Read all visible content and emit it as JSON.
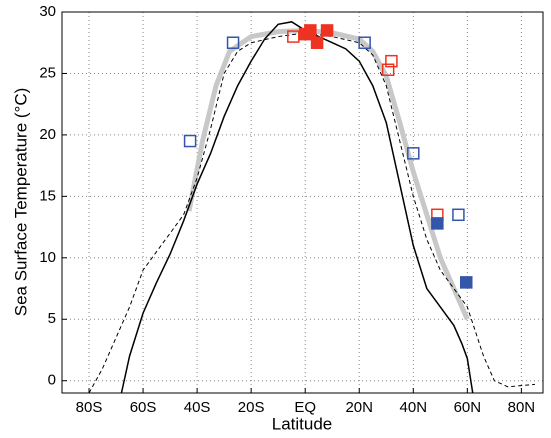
{
  "chart_data": {
    "type": "line",
    "x_label": "Latitude",
    "y_label": "Sea Surface Temperature (°C)",
    "xlim": [
      -90,
      88
    ],
    "ylim": [
      -1,
      30
    ],
    "xticks": [
      {
        "value": -80,
        "label": "80S"
      },
      {
        "value": -60,
        "label": "60S"
      },
      {
        "value": -40,
        "label": "40S"
      },
      {
        "value": -20,
        "label": "20S"
      },
      {
        "value": 0,
        "label": "EQ"
      },
      {
        "value": 20,
        "label": "20N"
      },
      {
        "value": 40,
        "label": "40N"
      },
      {
        "value": 60,
        "label": "60N"
      },
      {
        "value": 80,
        "label": "80N"
      }
    ],
    "yticks": [
      0,
      5,
      10,
      15,
      20,
      25,
      30
    ],
    "grid": true,
    "series": [
      {
        "color": "#c8c8c8",
        "line": "solid",
        "width": 5,
        "marker": "none",
        "x": [
          -43,
          -38,
          -33,
          -28,
          -20,
          -10,
          0,
          10,
          20,
          25,
          30,
          35,
          40,
          45,
          50,
          55,
          60
        ],
        "values": [
          13.8,
          19.5,
          24,
          26.8,
          28,
          28.4,
          28.5,
          28.3,
          27.8,
          26.8,
          24.8,
          21,
          17,
          13.5,
          10,
          7.5,
          5
        ]
      },
      {
        "color": "#000000",
        "line": "solid",
        "width": 1.5,
        "marker": "none",
        "x": [
          -68,
          -65,
          -60,
          -55,
          -50,
          -45,
          -40,
          -35,
          -30,
          -25,
          -20,
          -15,
          -10,
          -5,
          0,
          5,
          10,
          15,
          20,
          25,
          30,
          35,
          40,
          45,
          50,
          55,
          58,
          60,
          62
        ],
        "values": [
          -1,
          2,
          5.5,
          8,
          10.3,
          13,
          16,
          18.5,
          21.5,
          24,
          26,
          27.8,
          29,
          29.2,
          28.5,
          28,
          27.5,
          27,
          26,
          24,
          21,
          16,
          11,
          7.5,
          6,
          4.5,
          3,
          1.8,
          -1
        ]
      },
      {
        "color": "#000000",
        "line": "dashed",
        "width": 1,
        "marker": "none",
        "x": [
          -80,
          -75,
          -70,
          -65,
          -60,
          -55,
          -50,
          -45,
          -40,
          -35,
          -30,
          -25,
          -20,
          -10,
          0,
          10,
          20,
          25,
          30,
          35,
          40,
          45,
          50,
          55,
          60,
          63,
          66,
          70,
          75,
          85
        ],
        "values": [
          -1,
          1,
          3.5,
          6,
          9,
          10.5,
          12,
          13.5,
          16.5,
          20.5,
          25,
          26.8,
          27.5,
          28,
          28.3,
          28,
          27.5,
          26.5,
          24,
          19.5,
          15,
          11.5,
          9,
          7.5,
          6,
          4,
          2,
          0,
          -0.5,
          -0.3
        ]
      },
      {
        "color": "#3355aa",
        "line": "none",
        "marker": "square",
        "filled": false,
        "x": [
          -42.6,
          -26.7,
          22,
          40,
          56.7
        ],
        "values": [
          19.5,
          27.5,
          27.5,
          18.5,
          13.5
        ]
      },
      {
        "color": "#ee3322",
        "line": "none",
        "marker": "square",
        "filled": false,
        "x": [
          -4.4,
          30.7,
          31.9,
          48.9
        ],
        "values": [
          28,
          25.3,
          26,
          13.5
        ]
      },
      {
        "color": "#ee3322",
        "line": "none",
        "marker": "square",
        "filled": true,
        "x": [
          0,
          1.9,
          4.4,
          8.1
        ],
        "values": [
          28.2,
          28.5,
          27.5,
          28.5
        ]
      },
      {
        "color": "#3355aa",
        "line": "none",
        "marker": "square",
        "filled": true,
        "x": [
          48.9,
          59.6
        ],
        "values": [
          12.8,
          8
        ]
      }
    ]
  }
}
